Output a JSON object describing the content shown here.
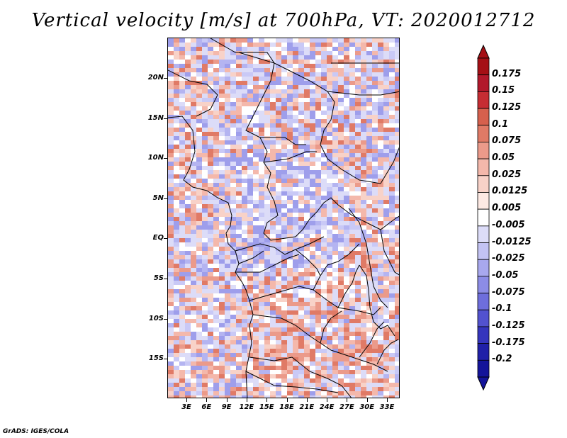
{
  "title": "Vertical velocity [m/s] at 700hPa, VT: 2020012712",
  "footer": "GrADS: IGES/COLA",
  "map": {
    "lat_labels": [
      "20N",
      "15N",
      "10N",
      "5N",
      "EQ",
      "5S",
      "10S",
      "15S"
    ],
    "lon_labels": [
      "3E",
      "6E",
      "9E",
      "12E",
      "15E",
      "18E",
      "21E",
      "24E",
      "27E",
      "30E",
      "33E"
    ]
  },
  "colorbar": {
    "labels": [
      "0.175",
      "0.15",
      "0.125",
      "0.1",
      "0.075",
      "0.05",
      "0.025",
      "0.0125",
      "0.005",
      "-0.005",
      "-0.0125",
      "-0.025",
      "-0.05",
      "-0.075",
      "-0.1",
      "-0.125",
      "-0.175",
      "-0.2"
    ],
    "colors": [
      "#a50f15",
      "#b2182b",
      "#c62d33",
      "#d6604d",
      "#e07a66",
      "#eb9a8a",
      "#f4b8ab",
      "#f8d2c8",
      "#fde9e3",
      "#ffffff",
      "#dcdcf8",
      "#c3c3f3",
      "#a8a8ee",
      "#8c8ce6",
      "#6e6edc",
      "#5252cf",
      "#3535bd",
      "#2020a8",
      "#14149a"
    ]
  }
}
